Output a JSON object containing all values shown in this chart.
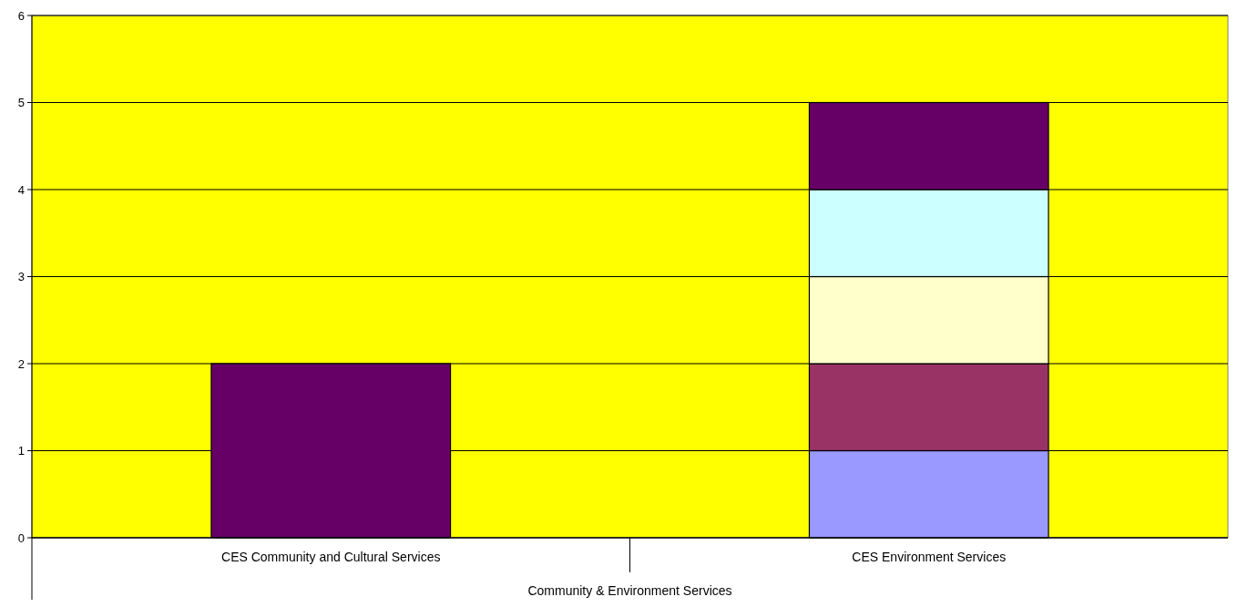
{
  "chart_data": {
    "type": "bar",
    "stacked": true,
    "categories": [
      "CES Community and Cultural Services",
      "CES Environment Services"
    ],
    "xlabel": "Community & Environment Services",
    "series": [
      {
        "color": "#9999ff",
        "values": [
          0,
          1
        ]
      },
      {
        "color": "#993366",
        "values": [
          0,
          1
        ]
      },
      {
        "color": "#ffffcc",
        "values": [
          0,
          1
        ]
      },
      {
        "color": "#ccffff",
        "values": [
          0,
          1
        ]
      },
      {
        "color": "#660066",
        "values": [
          2,
          1
        ]
      }
    ],
    "ylim": [
      0,
      6
    ],
    "yticks": [
      0,
      1,
      2,
      3,
      4,
      5,
      6
    ],
    "grid": "y"
  }
}
